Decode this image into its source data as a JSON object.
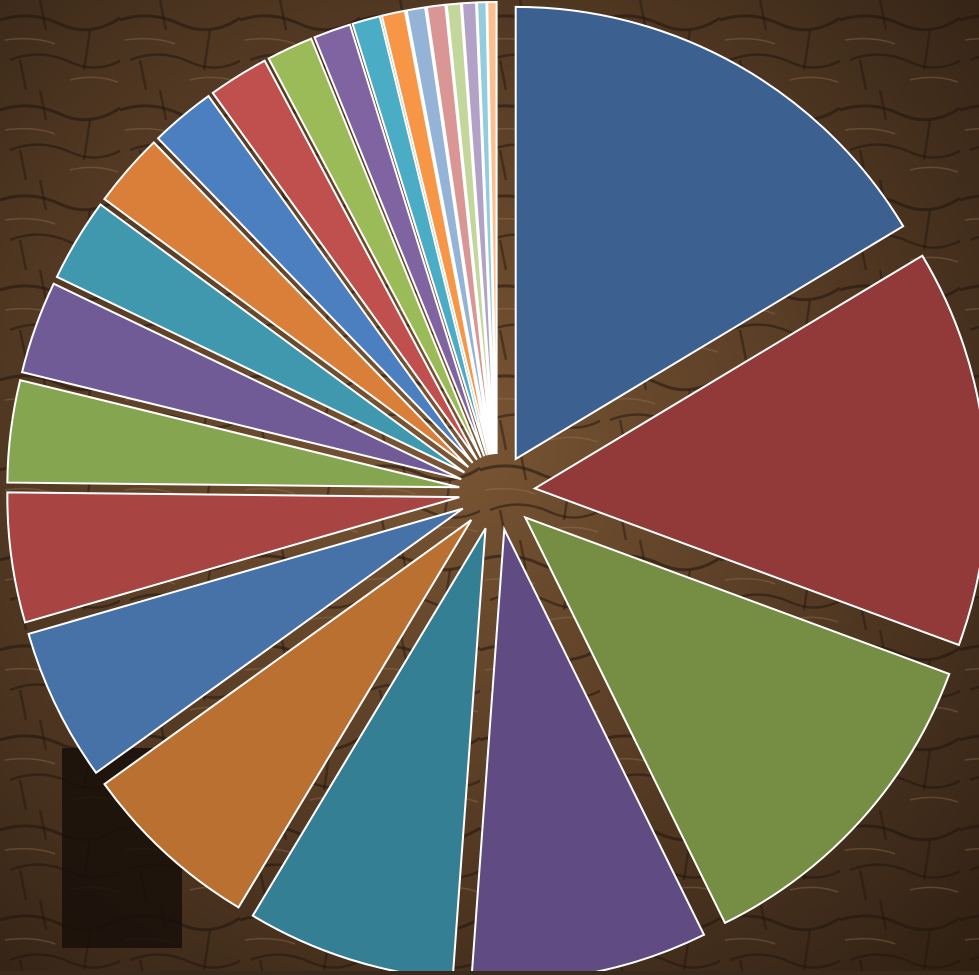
{
  "background": {
    "description_colors": [
      "#6b4a2c",
      "#3d2a1a",
      "#8a6a48",
      "#241810"
    ]
  },
  "chart_data": {
    "type": "pie",
    "title": "",
    "legend": "none",
    "data_labels": "none",
    "start_angle_deg": 0,
    "direction": "clockwise",
    "exploded": true,
    "values": [
      99,
      86,
      73,
      51,
      45,
      39,
      33,
      28,
      22,
      20,
      18,
      16,
      14,
      13,
      10,
      8,
      6,
      5,
      4,
      4,
      3,
      3,
      2,
      2
    ],
    "colors": [
      "#3c6191",
      "#913a39",
      "#758e43",
      "#604c82",
      "#347f94",
      "#ba7031",
      "#4672a8",
      "#a84543",
      "#86a551",
      "#715b97",
      "#3f98ad",
      "#d97f3a",
      "#4c7fbf",
      "#c0504d",
      "#9bbb59",
      "#8064a2",
      "#4bacc6",
      "#f79646",
      "#95b3d7",
      "#d99694",
      "#c3d69b",
      "#b3a2c7",
      "#93cddd",
      "#fac090"
    ]
  }
}
